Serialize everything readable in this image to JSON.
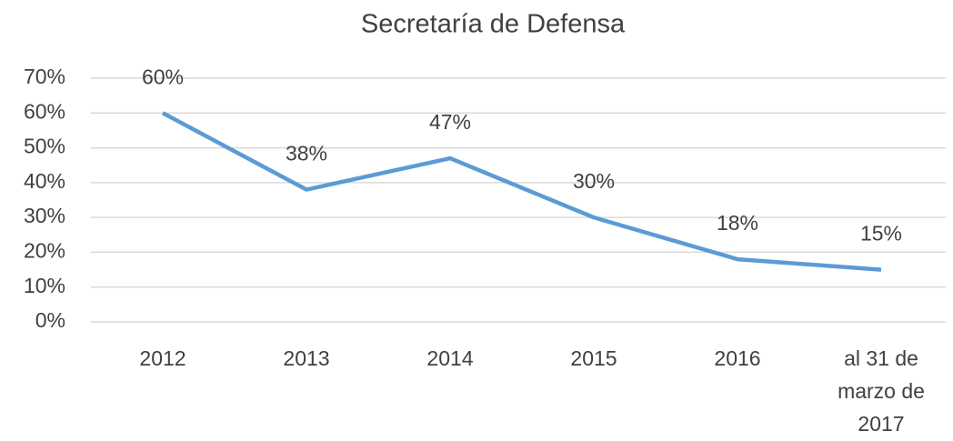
{
  "chart_data": {
    "type": "line",
    "title": "Secretaría de Defensa",
    "categories": [
      "2012",
      "2013",
      "2014",
      "2015",
      "2016",
      "al 31 de marzo de 2017"
    ],
    "series": [
      {
        "name": "Secretaría de Defensa",
        "color": "#5b9bd5",
        "values": [
          60,
          38,
          47,
          30,
          18,
          15
        ],
        "value_labels": [
          "60%",
          "38%",
          "47%",
          "30%",
          "18%",
          "15%"
        ]
      }
    ],
    "ylim": [
      0,
      70
    ],
    "yticks": [
      {
        "value": 0,
        "label": "0%"
      },
      {
        "value": 10,
        "label": "10%"
      },
      {
        "value": 20,
        "label": "20%"
      },
      {
        "value": 30,
        "label": "30%"
      },
      {
        "value": 40,
        "label": "40%"
      },
      {
        "value": 50,
        "label": "50%"
      },
      {
        "value": 60,
        "label": "60%"
      },
      {
        "value": 70,
        "label": "70%"
      }
    ],
    "grid": true
  }
}
